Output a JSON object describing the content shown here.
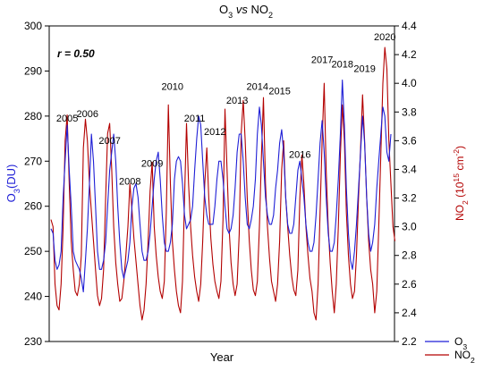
{
  "chart_data": {
    "type": "line",
    "title_parts": [
      "O",
      "3",
      " ",
      "vs",
      " ",
      "NO",
      "2"
    ],
    "annotation": "r = 0.50",
    "xlabel": "Year",
    "ylabel_left": [
      "O",
      "3",
      "(DU)"
    ],
    "ylabel_right": [
      "NO",
      "2",
      " (10",
      "15",
      " cm",
      "-2",
      ")"
    ],
    "left_axis": {
      "min": 230,
      "max": 300,
      "ticks": [
        230,
        240,
        250,
        260,
        270,
        280,
        290,
        300
      ]
    },
    "right_axis": {
      "min": 2.2,
      "max": 4.4,
      "ticks": [
        "2.2",
        "2.4",
        "2.6",
        "2.8",
        "3.0",
        "3.2",
        "3.4",
        "3.6",
        "3.8",
        "4.0",
        "4.2",
        "4.4"
      ]
    },
    "colors": {
      "o3": "#1f1fd6",
      "no2": "#b30000"
    },
    "year_labels": [
      {
        "year": "2005",
        "o3": 278
      },
      {
        "year": "2006",
        "o3": 279
      },
      {
        "year": "2007",
        "o3": 273
      },
      {
        "year": "2008",
        "o3": 264
      },
      {
        "year": "2009",
        "o3": 268
      },
      {
        "year": "2010",
        "o3": 285
      },
      {
        "year": "2011",
        "o3": 278
      },
      {
        "year": "2012",
        "o3": 275
      },
      {
        "year": "2013",
        "o3": 282
      },
      {
        "year": "2014",
        "o3": 285
      },
      {
        "year": "2015",
        "o3": 284
      },
      {
        "year": "2016",
        "o3": 270
      },
      {
        "year": "2017",
        "o3": 291
      },
      {
        "year": "2018",
        "o3": 290
      },
      {
        "year": "2019",
        "o3": 289
      },
      {
        "year": "2020",
        "o3": 296
      }
    ],
    "series": [
      {
        "name": [
          "O",
          "3"
        ],
        "axis": "left",
        "values": [
          255,
          254,
          248,
          246,
          247,
          250,
          262,
          270,
          278,
          268,
          260,
          250,
          248,
          247,
          246,
          244,
          241,
          248,
          255,
          265,
          276,
          270,
          260,
          250,
          246,
          246,
          248,
          252,
          260,
          268,
          272,
          276,
          270,
          260,
          252,
          246,
          244,
          246,
          248,
          252,
          260,
          264,
          265,
          262,
          256,
          250,
          248,
          248,
          250,
          254,
          260,
          266,
          270,
          272,
          266,
          258,
          252,
          250,
          250,
          252,
          256,
          266,
          270,
          271,
          270,
          265,
          258,
          255,
          256,
          257,
          260,
          268,
          275,
          280,
          278,
          270,
          262,
          258,
          256,
          256,
          256,
          260,
          266,
          270,
          270,
          266,
          260,
          255,
          254,
          255,
          258,
          264,
          272,
          276,
          276,
          270,
          262,
          256,
          255,
          257,
          260,
          266,
          276,
          282,
          278,
          270,
          262,
          258,
          256,
          256,
          258,
          264,
          268,
          274,
          277,
          272,
          262,
          256,
          254,
          254,
          256,
          262,
          268,
          270,
          266,
          262,
          256,
          252,
          250,
          250,
          252,
          258,
          266,
          274,
          279,
          272,
          262,
          254,
          250,
          250,
          252,
          258,
          266,
          276,
          288,
          278,
          264,
          254,
          248,
          246,
          250,
          256,
          264,
          272,
          280,
          274,
          262,
          254,
          250,
          252,
          256,
          264,
          270,
          276,
          282,
          280,
          272,
          270,
          276
        ]
      },
      {
        "name": [
          "NO",
          "2"
        ],
        "axis": "right",
        "values": [
          3.05,
          3.0,
          2.6,
          2.45,
          2.42,
          2.6,
          3.0,
          3.6,
          3.78,
          3.3,
          2.9,
          2.7,
          2.55,
          2.52,
          2.6,
          2.8,
          3.55,
          3.75,
          3.6,
          3.3,
          3.1,
          2.9,
          2.7,
          2.52,
          2.45,
          2.5,
          2.7,
          3.2,
          3.65,
          3.72,
          3.4,
          3.0,
          2.75,
          2.6,
          2.48,
          2.5,
          2.62,
          2.8,
          3.0,
          3.3,
          3.12,
          2.92,
          2.76,
          2.6,
          2.45,
          2.35,
          2.42,
          2.6,
          2.9,
          3.25,
          3.45,
          3.0,
          2.8,
          2.65,
          2.55,
          2.5,
          2.62,
          3.1,
          3.85,
          3.3,
          2.9,
          2.7,
          2.55,
          2.45,
          2.4,
          2.62,
          3.2,
          3.72,
          3.3,
          3.0,
          2.8,
          2.65,
          2.55,
          2.48,
          2.6,
          2.9,
          3.3,
          3.55,
          3.2,
          2.92,
          2.74,
          2.62,
          2.55,
          2.5,
          2.62,
          3.05,
          3.82,
          3.4,
          3.0,
          2.75,
          2.6,
          2.52,
          2.6,
          2.95,
          3.65,
          3.88,
          3.6,
          3.2,
          2.9,
          2.7,
          2.56,
          2.52,
          2.62,
          3.0,
          3.48,
          3.9,
          3.3,
          3.0,
          2.78,
          2.62,
          2.55,
          2.48,
          2.6,
          2.9,
          3.4,
          3.6,
          3.2,
          3.0,
          2.8,
          2.65,
          2.56,
          2.52,
          2.7,
          3.2,
          3.5,
          3.3,
          3.0,
          2.8,
          2.64,
          2.55,
          2.4,
          2.35,
          2.6,
          3.1,
          3.6,
          4.0,
          3.4,
          3.0,
          2.75,
          2.55,
          2.4,
          2.6,
          3.0,
          3.5,
          3.85,
          3.6,
          3.1,
          2.8,
          2.6,
          2.5,
          2.55,
          2.8,
          3.2,
          3.55,
          3.92,
          3.6,
          3.2,
          2.9,
          2.7,
          2.6,
          2.4,
          2.55,
          3.0,
          3.5,
          4.0,
          4.25,
          4.1,
          3.6,
          3.3,
          3.0,
          2.9
        ]
      }
    ]
  }
}
